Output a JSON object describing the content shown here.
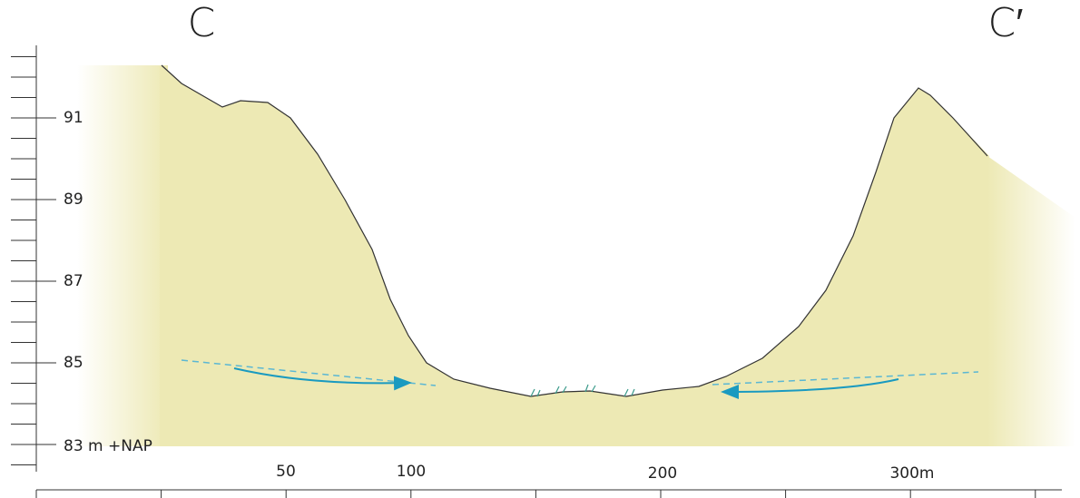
{
  "labels": {
    "left": "C",
    "right": "C′"
  },
  "y_axis": {
    "ticks": [
      "91",
      "89",
      "87",
      "85",
      "83 m +NAP"
    ]
  },
  "x_axis": {
    "ticks": [
      "50",
      "100",
      "200",
      "300m"
    ]
  }
}
